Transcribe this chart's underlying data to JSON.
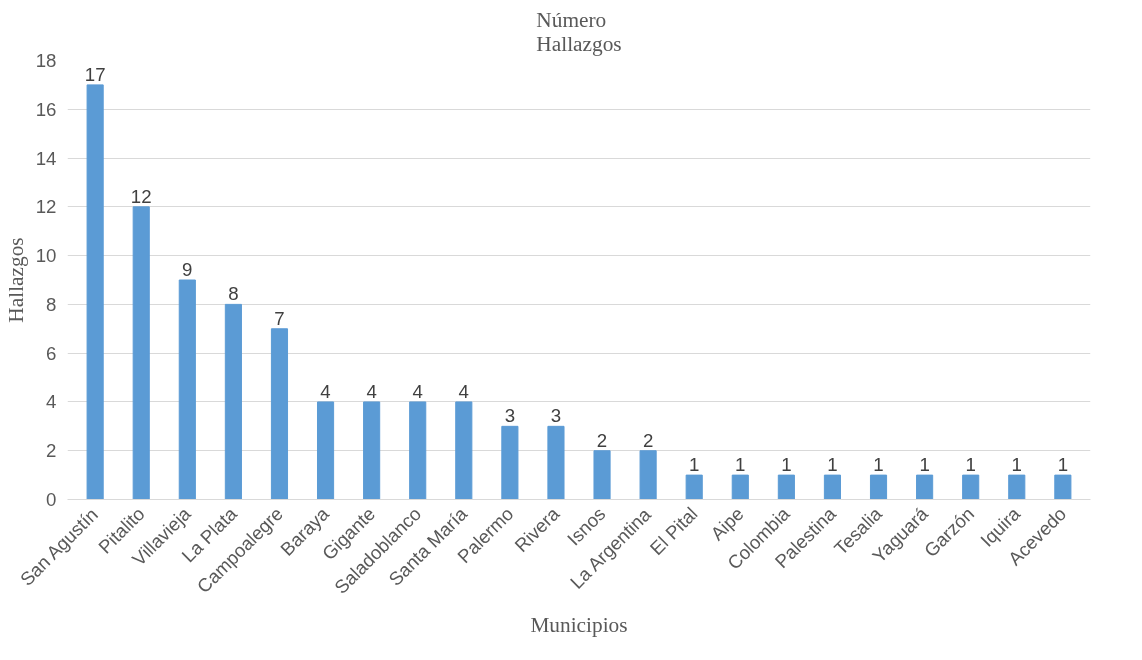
{
  "chart_data": {
    "type": "bar",
    "title": "Número\nHallazgos",
    "xlabel": "Municipios",
    "ylabel": "Hallazgos",
    "categories": [
      "San Agustín",
      "Pitalito",
      "Villavieja",
      "La Plata",
      "Campoalegre",
      "Baraya",
      "Gigante",
      "Saladoblanco",
      "Santa María",
      "Palermo",
      "Rivera",
      "Isnos",
      "La Argentina",
      "El Pital",
      "Aipe",
      "Colombia",
      "Palestina",
      "Tesalia",
      "Yaguará",
      "Garzón",
      "Iquira",
      "Acevedo"
    ],
    "values": [
      17,
      12,
      9,
      8,
      7,
      4,
      4,
      4,
      4,
      3,
      3,
      2,
      2,
      1,
      1,
      1,
      1,
      1,
      1,
      1,
      1,
      1
    ],
    "color": "#5b9bd5",
    "ylim": [
      0,
      18
    ],
    "yticks": [
      0,
      2,
      4,
      6,
      8,
      10,
      12,
      14,
      16,
      18
    ],
    "grid": "y",
    "data_labels": true
  }
}
